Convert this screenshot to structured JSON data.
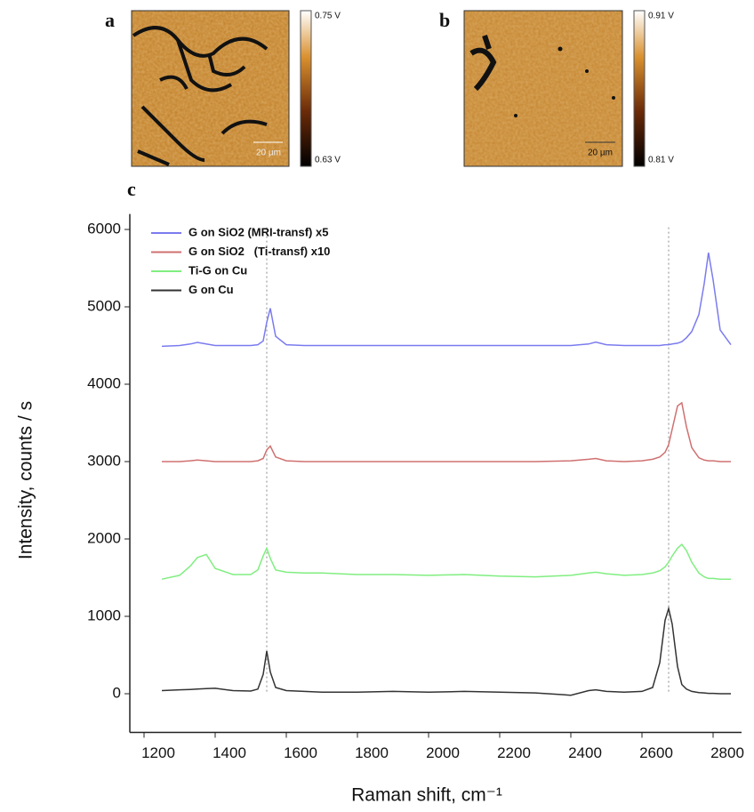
{
  "panels": [
    {
      "label": "a",
      "colorbar_max": "0.75 V",
      "colorbar_min": "0.63 V",
      "scale_bar": "20 µm"
    },
    {
      "label": "b",
      "colorbar_max": "0.91 V",
      "colorbar_min": "0.81 V",
      "scale_bar": "20 µm"
    }
  ],
  "chart_data": {
    "type": "line",
    "panel_label": "c",
    "x_label": "Raman shift, cm⁻¹",
    "y_label": "Intensity, counts / s",
    "x": [
      1250,
      1300,
      1330,
      1350,
      1375,
      1400,
      1450,
      1500,
      1520,
      1535,
      1545,
      1555,
      1570,
      1600,
      1650,
      1700,
      1800,
      1900,
      2000,
      2100,
      2200,
      2300,
      2400,
      2450,
      2470,
      2500,
      2550,
      2600,
      2630,
      2650,
      2665,
      2675,
      2685,
      2700,
      2712,
      2725,
      2740,
      2760,
      2775,
      2787,
      2800,
      2820,
      2850
    ],
    "series": [
      {
        "name": "G on SiO2 (MRI-transf) x5",
        "color": "#7b7bf0",
        "values": [
          4490,
          4500,
          4520,
          4540,
          4520,
          4500,
          4500,
          4500,
          4510,
          4560,
          4800,
          4980,
          4620,
          4510,
          4500,
          4500,
          4500,
          4500,
          4500,
          4500,
          4500,
          4500,
          4500,
          4520,
          4545,
          4510,
          4500,
          4500,
          4500,
          4500,
          4510,
          4510,
          4520,
          4530,
          4550,
          4600,
          4680,
          4900,
          5300,
          5700,
          5350,
          4700,
          4510
        ]
      },
      {
        "name": "G on SiO2   (Ti-transf) x10",
        "color": "#d07070",
        "values": [
          3000,
          3000,
          3010,
          3020,
          3010,
          3000,
          3000,
          3000,
          3010,
          3040,
          3150,
          3200,
          3060,
          3010,
          3000,
          3000,
          3000,
          3000,
          3000,
          3000,
          3000,
          3000,
          3010,
          3030,
          3040,
          3010,
          3000,
          3010,
          3030,
          3060,
          3120,
          3220,
          3420,
          3720,
          3760,
          3450,
          3180,
          3050,
          3020,
          3010,
          3010,
          3000,
          3000
        ]
      },
      {
        "name": "Ti-G on Cu",
        "color": "#80ee80",
        "values": [
          1480,
          1530,
          1650,
          1760,
          1800,
          1620,
          1540,
          1540,
          1600,
          1780,
          1880,
          1750,
          1600,
          1570,
          1560,
          1560,
          1540,
          1540,
          1530,
          1540,
          1520,
          1510,
          1530,
          1560,
          1570,
          1550,
          1530,
          1540,
          1560,
          1590,
          1640,
          1700,
          1780,
          1880,
          1930,
          1850,
          1700,
          1560,
          1510,
          1490,
          1490,
          1480,
          1480
        ]
      },
      {
        "name": "G on Cu",
        "color": "#333333",
        "values": [
          40,
          50,
          55,
          60,
          65,
          70,
          40,
          35,
          60,
          250,
          550,
          280,
          80,
          40,
          30,
          20,
          20,
          30,
          20,
          30,
          20,
          10,
          -20,
          40,
          50,
          30,
          20,
          30,
          80,
          400,
          950,
          1100,
          900,
          350,
          120,
          60,
          30,
          15,
          10,
          5,
          5,
          0,
          0
        ]
      }
    ],
    "vlines": [
      1545,
      2675
    ],
    "xlim": [
      1160,
      2880
    ],
    "xticks": [
      1200,
      1400,
      1600,
      1800,
      2000,
      2200,
      2400,
      2600,
      2800
    ],
    "ylim": [
      -500,
      6200
    ],
    "yticks": [
      0,
      1000,
      2000,
      3000,
      4000,
      5000,
      6000
    ],
    "legend": "upper left"
  }
}
